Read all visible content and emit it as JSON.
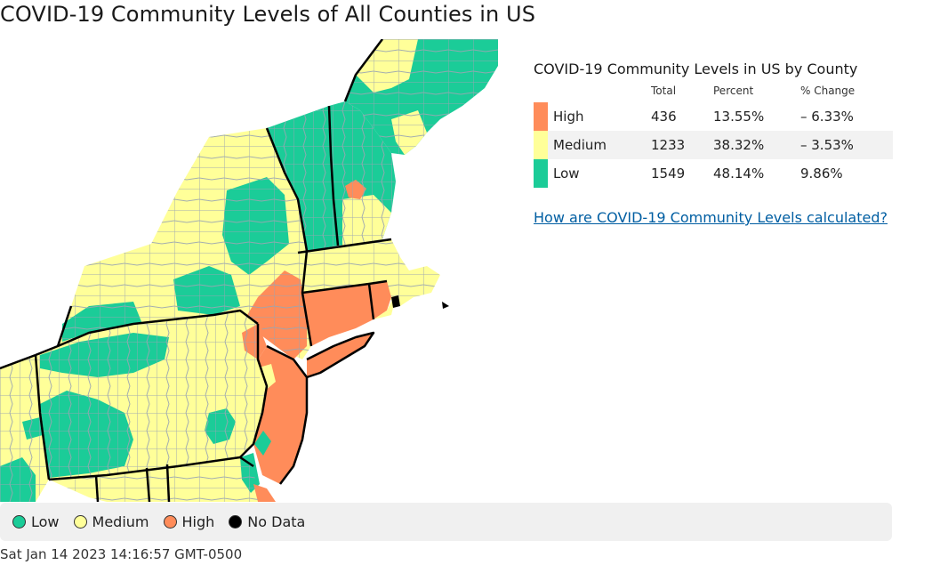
{
  "page": {
    "title": "COVID-19 Community Levels of All Counties in US",
    "timestamp": "Sat Jan 14 2023 14:16:57 GMT-0500"
  },
  "colors": {
    "low": "#1bcc98",
    "medium": "#ffff99",
    "high": "#ff8c5a",
    "no_data": "#000000",
    "county_border": "#9aa5b1",
    "state_border": "#000000",
    "link": "#005ea2"
  },
  "summary_table": {
    "title": "COVID-19 Community Levels in US by County",
    "headers": {
      "level": "",
      "total": "Total",
      "percent": "Percent",
      "change": "% Change"
    },
    "rows": [
      {
        "level": "High",
        "color": "#ff8c5a",
        "total": "436",
        "percent": "13.55%",
        "change": "– 6.33%"
      },
      {
        "level": "Medium",
        "color": "#ffff99",
        "total": "1233",
        "percent": "38.32%",
        "change": "– 3.53%"
      },
      {
        "level": "Low",
        "color": "#1bcc98",
        "total": "1549",
        "percent": "48.14%",
        "change": "9.86%"
      }
    ],
    "link_text": "How are COVID-19 Community Levels calculated?"
  },
  "legend": {
    "items": [
      {
        "label": "Low",
        "color": "#1bcc98"
      },
      {
        "label": "Medium",
        "color": "#ffff99"
      },
      {
        "label": "High",
        "color": "#ff8c5a"
      },
      {
        "label": "No Data",
        "color": "#000000"
      }
    ]
  }
}
